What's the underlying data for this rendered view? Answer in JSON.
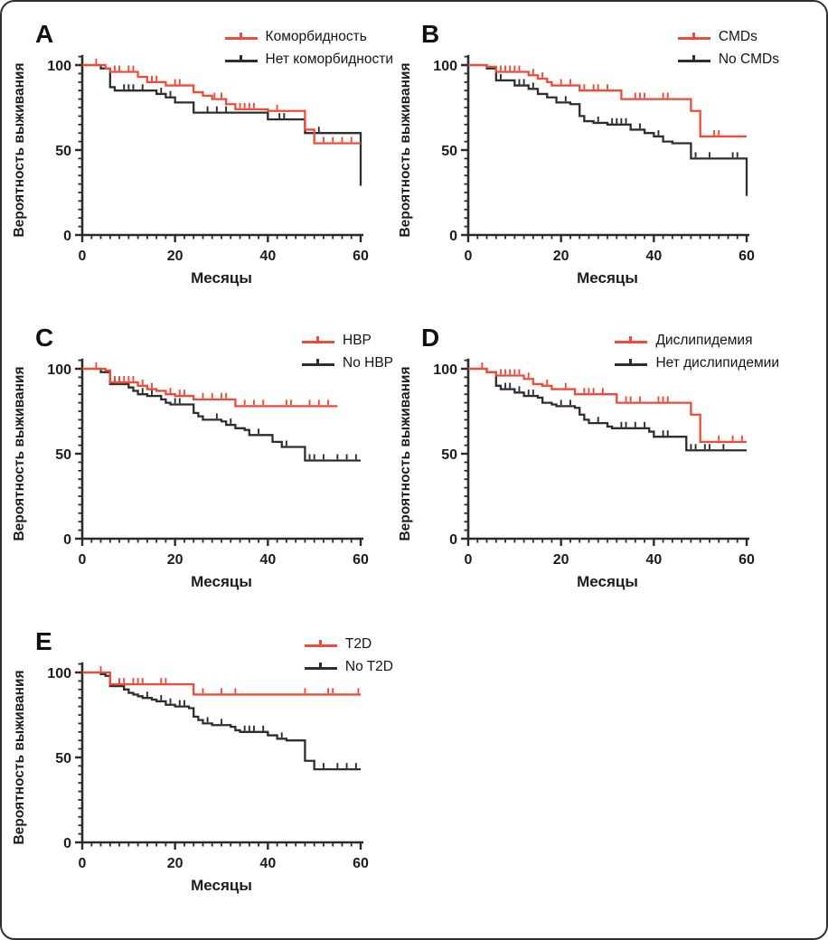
{
  "figure": {
    "background": "#ffffff",
    "border_color": "#2f2f2f"
  },
  "colors": {
    "red_series": "#ee4b3a",
    "black_series": "#2e2e2e",
    "axis": "#2b2b2b",
    "text": "#1c1c1c"
  },
  "chart_data": [
    {
      "type": "line",
      "subtype": "kaplan-meier-step",
      "panel_label": "A",
      "xlabel": "Месяцы",
      "ylabel": "Вероятность выживания",
      "xlim": [
        0,
        60
      ],
      "ylim": [
        0,
        105
      ],
      "x_ticks": [
        0,
        20,
        40,
        60
      ],
      "y_ticks": [
        0,
        50,
        100
      ],
      "x_minor_step": 2,
      "y_minor_step": 5,
      "grid": false,
      "legend_position": "top-right",
      "series": [
        {
          "name": "Коморбидность",
          "color": "#ee4b3a",
          "steps": [
            [
              0,
              100
            ],
            [
              5,
              98
            ],
            [
              6,
              96
            ],
            [
              12,
              93
            ],
            [
              14,
              90
            ],
            [
              18,
              88
            ],
            [
              24,
              84
            ],
            [
              26,
              82
            ],
            [
              28,
              80
            ],
            [
              31,
              77
            ],
            [
              33,
              74
            ],
            [
              40,
              73
            ],
            [
              48,
              62
            ],
            [
              50,
              54
            ],
            [
              60,
              54
            ]
          ],
          "censors": [
            3,
            7,
            8,
            10,
            11,
            15,
            16,
            20,
            21,
            28.5,
            30,
            34,
            35,
            36,
            37,
            42,
            52,
            54,
            56,
            58
          ]
        },
        {
          "name": "Нет коморбидности",
          "color": "#2e2e2e",
          "steps": [
            [
              0,
              100
            ],
            [
              4,
              98
            ],
            [
              6,
              87
            ],
            [
              7,
              85
            ],
            [
              16,
              83
            ],
            [
              18,
              81
            ],
            [
              20,
              78
            ],
            [
              24,
              72
            ],
            [
              40,
              68
            ],
            [
              48,
              60
            ],
            [
              60,
              60
            ],
            [
              60,
              29
            ]
          ],
          "censors": [
            9,
            10,
            11,
            13,
            17,
            19,
            27,
            29,
            31,
            42.5,
            43.5,
            51
          ]
        }
      ]
    },
    {
      "type": "line",
      "subtype": "kaplan-meier-step",
      "panel_label": "B",
      "xlabel": "Месяцы",
      "ylabel": "Вероятность выживания",
      "xlim": [
        0,
        60
      ],
      "ylim": [
        0,
        105
      ],
      "x_ticks": [
        0,
        20,
        40,
        60
      ],
      "y_ticks": [
        0,
        50,
        100
      ],
      "x_minor_step": 2,
      "y_minor_step": 5,
      "grid": false,
      "legend_position": "top-right",
      "series": [
        {
          "name": "CMDs",
          "color": "#ee4b3a",
          "steps": [
            [
              0,
              100
            ],
            [
              4,
              99
            ],
            [
              6,
              96
            ],
            [
              13,
              94
            ],
            [
              15,
              92
            ],
            [
              17,
              90
            ],
            [
              18,
              88
            ],
            [
              24,
              85
            ],
            [
              33,
              80
            ],
            [
              48,
              73
            ],
            [
              50,
              58
            ],
            [
              60,
              58
            ]
          ],
          "censors": [
            7,
            8,
            9,
            10,
            11,
            14,
            16,
            20,
            22,
            25,
            27,
            28,
            30,
            36,
            37,
            38,
            42,
            43,
            53,
            54
          ]
        },
        {
          "name": "No CMDs",
          "color": "#2e2e2e",
          "steps": [
            [
              0,
              100
            ],
            [
              4,
              98
            ],
            [
              6,
              91
            ],
            [
              10,
              88
            ],
            [
              13,
              86
            ],
            [
              15,
              83
            ],
            [
              17,
              81
            ],
            [
              19,
              78
            ],
            [
              22,
              77
            ],
            [
              24,
              70
            ],
            [
              25,
              67
            ],
            [
              27,
              66
            ],
            [
              30,
              65
            ],
            [
              35,
              62
            ],
            [
              38,
              60
            ],
            [
              40,
              58
            ],
            [
              42,
              55
            ],
            [
              44,
              54
            ],
            [
              48,
              45
            ],
            [
              60,
              45
            ],
            [
              60,
              23
            ]
          ],
          "censors": [
            7,
            11,
            12,
            14,
            21,
            28,
            31,
            32,
            33,
            34,
            37,
            41,
            49,
            52,
            57,
            58
          ]
        }
      ]
    },
    {
      "type": "line",
      "subtype": "kaplan-meier-step",
      "panel_label": "C",
      "xlabel": "Месяцы",
      "ylabel": "Вероятность выживания",
      "xlim": [
        0,
        60
      ],
      "ylim": [
        0,
        105
      ],
      "x_ticks": [
        0,
        20,
        40,
        60
      ],
      "y_ticks": [
        0,
        50,
        100
      ],
      "x_minor_step": 2,
      "y_minor_step": 5,
      "grid": false,
      "legend_position": "top-right",
      "series": [
        {
          "name": "HBP",
          "color": "#ee4b3a",
          "steps": [
            [
              0,
              100
            ],
            [
              5,
              99
            ],
            [
              6,
              92
            ],
            [
              12,
              90
            ],
            [
              14,
              88
            ],
            [
              16,
              87
            ],
            [
              18,
              85
            ],
            [
              20,
              84
            ],
            [
              24,
              82
            ],
            [
              33,
              78
            ],
            [
              55,
              78
            ]
          ],
          "censors": [
            3,
            7,
            8,
            9,
            10,
            11,
            13,
            15,
            19,
            21,
            22,
            26,
            28,
            30,
            31,
            35,
            37,
            39,
            44,
            45,
            49,
            51,
            53
          ]
        },
        {
          "name": "No HBP",
          "color": "#2e2e2e",
          "steps": [
            [
              0,
              100
            ],
            [
              4,
              98
            ],
            [
              6,
              91
            ],
            [
              10,
              89
            ],
            [
              11,
              87
            ],
            [
              12,
              85
            ],
            [
              14,
              84
            ],
            [
              17,
              82
            ],
            [
              18,
              80
            ],
            [
              19,
              79
            ],
            [
              24,
              74
            ],
            [
              25,
              72
            ],
            [
              26,
              70
            ],
            [
              30,
              69
            ],
            [
              31,
              67
            ],
            [
              33,
              65
            ],
            [
              35,
              64
            ],
            [
              36,
              61
            ],
            [
              41,
              57
            ],
            [
              43,
              54
            ],
            [
              48,
              46
            ],
            [
              60,
              46
            ]
          ],
          "censors": [
            7,
            8,
            13,
            15,
            20,
            21,
            29,
            32,
            38,
            44,
            49,
            50,
            52,
            55,
            57,
            59
          ]
        }
      ]
    },
    {
      "type": "line",
      "subtype": "kaplan-meier-step",
      "panel_label": "D",
      "xlabel": "Месяцы",
      "ylabel": "Вероятность выживания",
      "xlim": [
        0,
        60
      ],
      "ylim": [
        0,
        105
      ],
      "x_ticks": [
        0,
        20,
        40,
        60
      ],
      "y_ticks": [
        0,
        50,
        100
      ],
      "x_minor_step": 2,
      "y_minor_step": 5,
      "grid": false,
      "legend_position": "top-right",
      "series": [
        {
          "name": "Дислипидемия",
          "color": "#ee4b3a",
          "steps": [
            [
              0,
              100
            ],
            [
              4,
              98
            ],
            [
              6,
              96
            ],
            [
              12,
              94
            ],
            [
              14,
              91
            ],
            [
              16,
              90
            ],
            [
              18,
              88
            ],
            [
              23,
              85
            ],
            [
              32,
              80
            ],
            [
              48,
              73
            ],
            [
              50,
              57
            ],
            [
              60,
              57
            ]
          ],
          "censors": [
            3,
            7,
            8,
            9,
            10,
            11,
            13,
            17,
            21,
            25,
            26,
            27,
            29,
            34,
            35,
            37,
            41,
            42,
            43,
            54,
            57,
            59
          ]
        },
        {
          "name": "Нет дислипидемии",
          "color": "#2e2e2e",
          "steps": [
            [
              0,
              100
            ],
            [
              4,
              98
            ],
            [
              6,
              90
            ],
            [
              7,
              88
            ],
            [
              10,
              86
            ],
            [
              12,
              84
            ],
            [
              15,
              83
            ],
            [
              16,
              80
            ],
            [
              18,
              79
            ],
            [
              19,
              78
            ],
            [
              23,
              77
            ],
            [
              24,
              73
            ],
            [
              25,
              70
            ],
            [
              26,
              68
            ],
            [
              30,
              66
            ],
            [
              31,
              65
            ],
            [
              39,
              63
            ],
            [
              40,
              60
            ],
            [
              47,
              52
            ],
            [
              60,
              52
            ]
          ],
          "censors": [
            8,
            9,
            11,
            13,
            14,
            20,
            22,
            28,
            33,
            34,
            36,
            38,
            42,
            43,
            48,
            49,
            51,
            52,
            55
          ]
        }
      ]
    },
    {
      "type": "line",
      "subtype": "kaplan-meier-step",
      "panel_label": "E",
      "xlabel": "Месяцы",
      "ylabel": "Вероятность выживания",
      "xlim": [
        0,
        60
      ],
      "ylim": [
        0,
        105
      ],
      "x_ticks": [
        0,
        20,
        40,
        60
      ],
      "y_ticks": [
        0,
        50,
        100
      ],
      "x_minor_step": 2,
      "y_minor_step": 5,
      "grid": false,
      "legend_position": "top-right",
      "series": [
        {
          "name": "T2D",
          "color": "#ee4b3a",
          "steps": [
            [
              0,
              100
            ],
            [
              6,
              93
            ],
            [
              24,
              87
            ],
            [
              60,
              87
            ]
          ],
          "censors": [
            4,
            8,
            9,
            11,
            12,
            13,
            17,
            18,
            26,
            30,
            33,
            48,
            53,
            54,
            59.5
          ]
        },
        {
          "name": "No T2D",
          "color": "#2e2e2e",
          "steps": [
            [
              0,
              100
            ],
            [
              4,
              99
            ],
            [
              5,
              98
            ],
            [
              6,
              92
            ],
            [
              9,
              90
            ],
            [
              10,
              88
            ],
            [
              11,
              87
            ],
            [
              12,
              86
            ],
            [
              13,
              85
            ],
            [
              15,
              84
            ],
            [
              16,
              83
            ],
            [
              18,
              81
            ],
            [
              20,
              80
            ],
            [
              23,
              79
            ],
            [
              24,
              74
            ],
            [
              25,
              72
            ],
            [
              26,
              70
            ],
            [
              28,
              69
            ],
            [
              32,
              68
            ],
            [
              33,
              66
            ],
            [
              34,
              65
            ],
            [
              40,
              63
            ],
            [
              42,
              61
            ],
            [
              44,
              60
            ],
            [
              48,
              48
            ],
            [
              50,
              43
            ],
            [
              60,
              43
            ]
          ],
          "censors": [
            8,
            14,
            17,
            19,
            21,
            22,
            27,
            30,
            35,
            36,
            37,
            39,
            43,
            52,
            55,
            57,
            59
          ]
        }
      ]
    }
  ]
}
